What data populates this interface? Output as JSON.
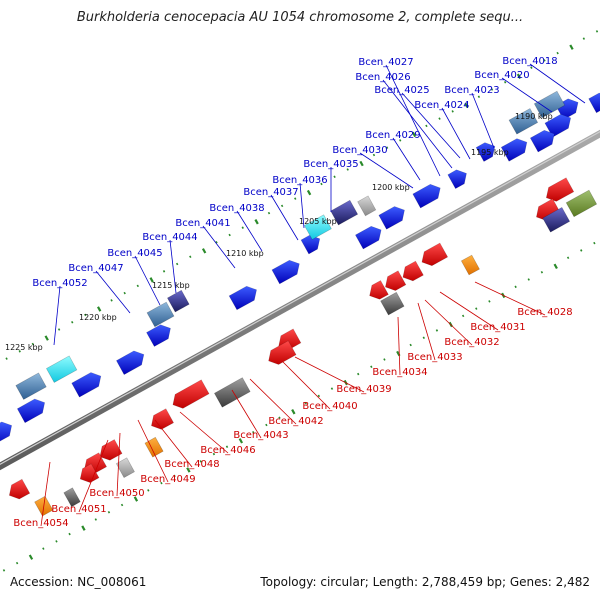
{
  "title": "Burkholderia cenocepacia AU 1054 chromosome 2, complete sequ...",
  "footer": {
    "accession": "Accession: NC_008061",
    "summary": "Topology: circular; Length: 2,788,459 bp; Genes: 2,482"
  },
  "colors": {
    "forward_gene": "#1010e6",
    "reverse_gene": "#e60f0f",
    "label_forward": "#0000c8",
    "label_reverse": "#cc0000",
    "backbone": "#8a8a8a",
    "tick": "#2a8a2a"
  },
  "scale_labels": [
    "1190 kbp",
    "1195 kbp",
    "1200 kbp",
    "1205 kbp",
    "1210 kbp",
    "1215 kbp",
    "1220 kbp",
    "1225 kbp"
  ],
  "forward_labels": [
    "Bcen_4018",
    "Bcen_4020",
    "Bcen_4023",
    "Bcen_4024",
    "Bcen_4025",
    "Bcen_4026",
    "Bcen_4027",
    "Bcen_4029",
    "Bcen_4030",
    "Bcen_4035",
    "Bcen_4036",
    "Bcen_4037",
    "Bcen_4038",
    "Bcen_4041",
    "Bcen_4044",
    "Bcen_4045",
    "Bcen_4047",
    "Bcen_4052"
  ],
  "reverse_labels": [
    "Bcen_4028",
    "Bcen_4031",
    "Bcen_4032",
    "Bcen_4033",
    "Bcen_4034",
    "Bcen_4039",
    "Bcen_4040",
    "Bcen_4042",
    "Bcen_4043",
    "Bcen_4046",
    "Bcen_4048",
    "Bcen_4049",
    "Bcen_4050",
    "Bcen_4051",
    "Bcen_4054"
  ]
}
